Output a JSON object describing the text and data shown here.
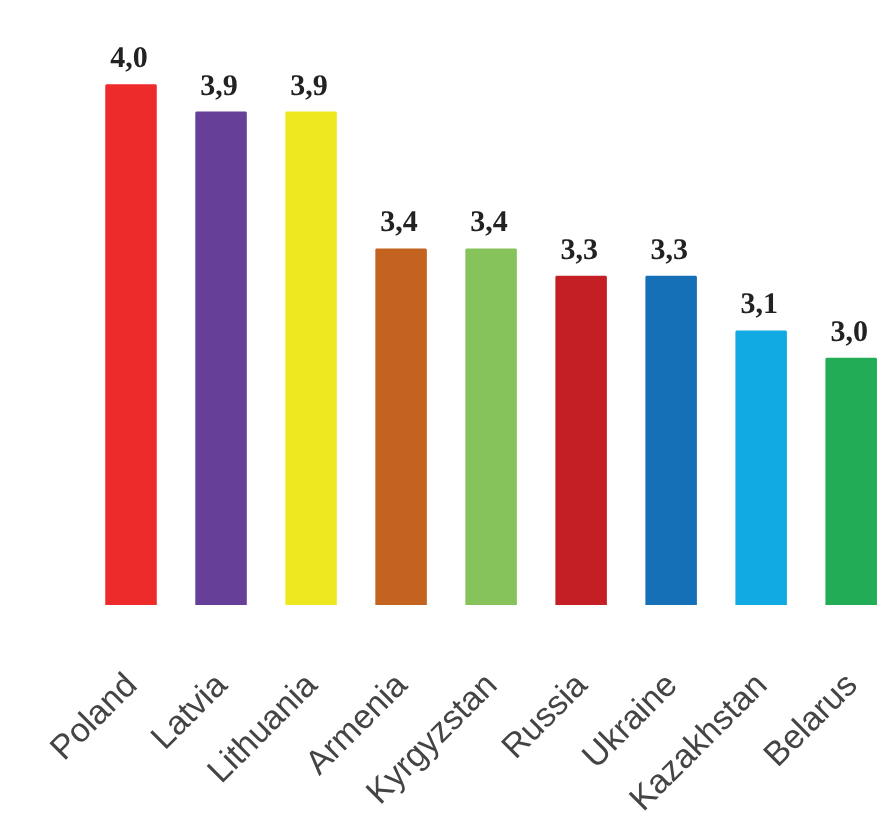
{
  "chart_data": {
    "type": "bar",
    "categories": [
      "Poland",
      "Latvia",
      "Lithuania",
      "Armenia",
      "Kyrgyzstan",
      "Russia",
      "Ukraine",
      "Kazakhstan",
      "Belarus"
    ],
    "values": [
      4.0,
      3.9,
      3.9,
      3.4,
      3.4,
      3.3,
      3.3,
      3.1,
      3.0
    ],
    "colors": [
      "#ee2b2b",
      "#663f99",
      "#ede820",
      "#c4621f",
      "#86c35a",
      "#c41f25",
      "#1570b8",
      "#12aae3",
      "#22ac55"
    ],
    "value_labels": [
      "4,0",
      "3,9",
      "3,9",
      "3,4",
      "3,4",
      "3,3",
      "3,3",
      "3,1",
      "3,0"
    ],
    "ylim": [
      2.1,
      4.0
    ],
    "tick_labels": "x"
  }
}
